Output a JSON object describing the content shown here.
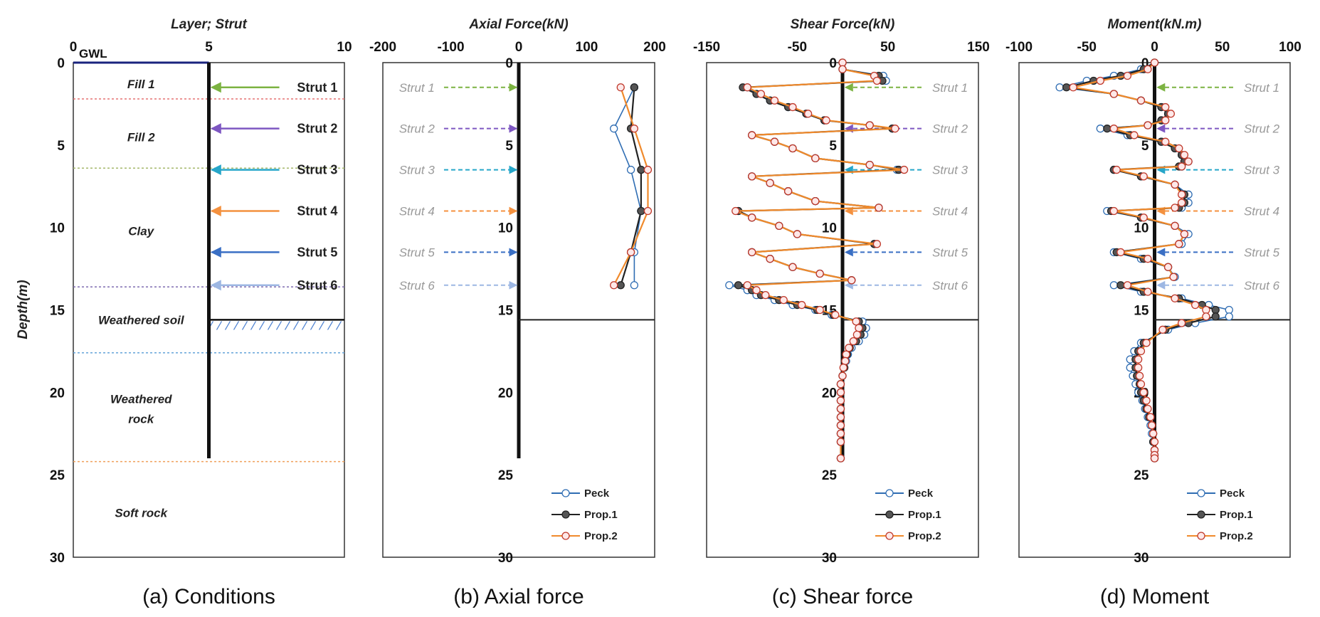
{
  "colors": {
    "peck": "#2f6db3",
    "prop1": "#222222",
    "prop2": "#f08a2c",
    "prop2_marker_edge": "#c0392b",
    "strut1": "#7cb342",
    "strut2": "#7e57c2",
    "strut3": "#26a6c9",
    "strut4": "#f4913f",
    "strut5": "#3a6fc4",
    "strut6": "#9db7e3",
    "gwl": "#1a237e"
  },
  "shared": {
    "ylabel": "Depth(m)",
    "y_ticks": [
      "0",
      "5",
      "10",
      "15",
      "20",
      "25",
      "30"
    ],
    "ylim": [
      0,
      30
    ],
    "excavation_depth": 15.6,
    "wall_bottom": 24,
    "strut_depths": [
      1.5,
      4.0,
      6.5,
      9.0,
      11.5,
      13.5
    ],
    "legend": [
      "Peck",
      "Prop.1",
      "Prop.2"
    ]
  },
  "chart_data": [
    {
      "type": "diagram",
      "title": "Layer; Strut",
      "caption": "(a) Conditions",
      "xlim": [
        0,
        10
      ],
      "x_ticks": [
        "0",
        "5",
        "10"
      ],
      "gwl_label": "GWL",
      "layers": [
        {
          "name": "Fill 1",
          "top": 0,
          "bottom": 2.2,
          "label_depth": 1.3
        },
        {
          "name": "Fill 2",
          "top": 2.2,
          "bottom": 6.4,
          "label_depth": 4.5
        },
        {
          "name": "Clay",
          "top": 6.4,
          "bottom": 13.6,
          "label_depth": 10.2
        },
        {
          "name": "Weathered soil",
          "top": 13.6,
          "bottom": 17.6,
          "label_depth": 15.6
        },
        {
          "name": "Weathered",
          "top": 17.6,
          "bottom": 24.2,
          "label_depth": 20.4
        },
        {
          "name": "rock",
          "top": 17.6,
          "bottom": 24.2,
          "label_depth": 21.6
        },
        {
          "name": "Soft rock",
          "top": 24.2,
          "bottom": 30,
          "label_depth": 27.3
        }
      ],
      "boundary_colors": [
        "#e57373",
        "#a5b86b",
        "#7e6bb0",
        "#64a3d9",
        "#f0a05a"
      ],
      "struts": [
        "Strut 1",
        "Strut 2",
        "Strut 3",
        "Strut 4",
        "Strut 5",
        "Strut 6"
      ]
    },
    {
      "type": "line",
      "title": "Axial Force(kN)",
      "caption": "(b) Axial force",
      "xlim": [
        -200,
        200
      ],
      "x_ticks": [
        "-200",
        "-100",
        "0",
        "100",
        "200"
      ],
      "struts": [
        "Strut 1",
        "Strut 2",
        "Strut 3",
        "Strut 4",
        "Strut 5",
        "Strut 6"
      ],
      "series": [
        {
          "name": "Peck",
          "x": [
            170,
            140,
            165,
            180,
            170,
            170
          ],
          "y": [
            1.5,
            4.0,
            6.5,
            9.0,
            11.5,
            13.5
          ]
        },
        {
          "name": "Prop.1",
          "x": [
            170,
            165,
            180,
            180,
            165,
            150
          ],
          "y": [
            1.5,
            4.0,
            6.5,
            9.0,
            11.5,
            13.5
          ]
        },
        {
          "name": "Prop.2",
          "x": [
            150,
            170,
            190,
            190,
            165,
            140
          ],
          "y": [
            1.5,
            4.0,
            6.5,
            9.0,
            11.5,
            13.5
          ]
        }
      ]
    },
    {
      "type": "line",
      "title": "Shear Force(kN)",
      "caption": "(c) Shear force",
      "xlim": [
        -150,
        150
      ],
      "x_ticks": [
        "-150",
        "-50",
        "50",
        "150"
      ],
      "struts": [
        "Strut 1",
        "Strut 2",
        "Strut 3",
        "Strut 4",
        "Strut 5",
        "Strut 6"
      ],
      "series": [
        {
          "name": "Peck",
          "x": [
            0,
            0,
            45,
            48,
            -105,
            -95,
            -80,
            -60,
            -40,
            -20,
            30,
            55,
            -100,
            -75,
            -55,
            -30,
            30,
            60,
            -100,
            -80,
            -60,
            -30,
            40,
            -115,
            -100,
            -70,
            -50,
            35,
            -100,
            -80,
            -55,
            -25,
            10,
            -125,
            -105,
            -95,
            -75,
            -55,
            -30,
            -12,
            22,
            26,
            24,
            18,
            10,
            6,
            4,
            2,
            0,
            -2,
            -2,
            -2,
            -2,
            -2,
            -2,
            -2,
            -2,
            -2
          ],
          "y": [
            0,
            0.4,
            0.8,
            1.1,
            1.5,
            1.9,
            2.3,
            2.7,
            3.1,
            3.5,
            3.8,
            4.0,
            4.4,
            4.8,
            5.2,
            5.8,
            6.2,
            6.5,
            6.9,
            7.3,
            7.8,
            8.4,
            8.8,
            9.0,
            9.4,
            9.9,
            10.4,
            11.0,
            11.5,
            11.9,
            12.4,
            12.8,
            13.2,
            13.5,
            13.8,
            14.1,
            14.4,
            14.7,
            15.0,
            15.3,
            15.7,
            16.1,
            16.5,
            16.9,
            17.3,
            17.7,
            18.1,
            18.5,
            19.0,
            19.5,
            20.0,
            20.5,
            21.0,
            21.5,
            22.0,
            22.5,
            23.0,
            24.0
          ]
        },
        {
          "name": "Prop.1",
          "x": [
            0,
            0,
            40,
            44,
            -110,
            -95,
            -80,
            -60,
            -40,
            -20,
            30,
            55,
            -100,
            -75,
            -55,
            -30,
            30,
            62,
            -100,
            -80,
            -60,
            -30,
            40,
            -115,
            -100,
            -70,
            -50,
            35,
            -100,
            -80,
            -55,
            -25,
            10,
            -115,
            -100,
            -90,
            -70,
            -50,
            -28,
            -10,
            18,
            22,
            20,
            15,
            8,
            5,
            3,
            2,
            0,
            -2,
            -2,
            -2,
            -2,
            -2,
            -2,
            -2,
            -2,
            -2
          ],
          "y": [
            0,
            0.4,
            0.8,
            1.1,
            1.5,
            1.9,
            2.3,
            2.7,
            3.1,
            3.5,
            3.8,
            4.0,
            4.4,
            4.8,
            5.2,
            5.8,
            6.2,
            6.5,
            6.9,
            7.3,
            7.8,
            8.4,
            8.8,
            9.0,
            9.4,
            9.9,
            10.4,
            11.0,
            11.5,
            11.9,
            12.4,
            12.8,
            13.2,
            13.5,
            13.8,
            14.1,
            14.4,
            14.7,
            15.0,
            15.3,
            15.7,
            16.1,
            16.5,
            16.9,
            17.3,
            17.7,
            18.1,
            18.5,
            19.0,
            19.5,
            20.0,
            20.5,
            21.0,
            21.5,
            22.0,
            22.5,
            23.0,
            24.0
          ]
        },
        {
          "name": "Prop.2",
          "x": [
            0,
            0,
            35,
            38,
            -105,
            -90,
            -75,
            -55,
            -38,
            -18,
            30,
            58,
            -100,
            -75,
            -55,
            -30,
            30,
            68,
            -100,
            -80,
            -60,
            -30,
            40,
            -118,
            -100,
            -70,
            -50,
            38,
            -100,
            -80,
            -55,
            -25,
            10,
            -105,
            -95,
            -85,
            -65,
            -45,
            -25,
            -8,
            15,
            18,
            16,
            12,
            7,
            4,
            3,
            1,
            0,
            -2,
            -2,
            -2,
            -2,
            -2,
            -2,
            -2,
            -2,
            -2
          ],
          "y": [
            0,
            0.4,
            0.8,
            1.1,
            1.5,
            1.9,
            2.3,
            2.7,
            3.1,
            3.5,
            3.8,
            4.0,
            4.4,
            4.8,
            5.2,
            5.8,
            6.2,
            6.5,
            6.9,
            7.3,
            7.8,
            8.4,
            8.8,
            9.0,
            9.4,
            9.9,
            10.4,
            11.0,
            11.5,
            11.9,
            12.4,
            12.8,
            13.2,
            13.5,
            13.8,
            14.1,
            14.4,
            14.7,
            15.0,
            15.3,
            15.7,
            16.1,
            16.5,
            16.9,
            17.3,
            17.7,
            18.1,
            18.5,
            19.0,
            19.5,
            20.0,
            20.5,
            21.0,
            21.5,
            22.0,
            22.5,
            23.0,
            24.0
          ]
        }
      ]
    },
    {
      "type": "line",
      "title": "Moment(kN.m)",
      "caption": "(d) Moment",
      "xlim": [
        -100,
        100
      ],
      "x_ticks": [
        "-100",
        "-50",
        "0",
        "50",
        "100"
      ],
      "struts": [
        "Strut 1",
        "Strut 2",
        "Strut 3",
        "Strut 4",
        "Strut 5",
        "Strut 6"
      ],
      "series": [
        {
          "name": "Peck",
          "x": [
            0,
            -10,
            -30,
            -50,
            -70,
            -30,
            -10,
            5,
            10,
            5,
            -5,
            -40,
            -20,
            5,
            15,
            20,
            25,
            20,
            -30,
            -10,
            15,
            25,
            25,
            20,
            -35,
            -10,
            15,
            25,
            20,
            -30,
            -10,
            10,
            15,
            -30,
            -10,
            20,
            40,
            55,
            55,
            30,
            10,
            -10,
            -15,
            -18,
            -18,
            -16,
            -14,
            -12,
            -9,
            -7,
            -5,
            -3,
            -2,
            -1,
            0,
            0,
            0
          ],
          "y": [
            0,
            0.4,
            0.8,
            1.1,
            1.5,
            1.9,
            2.3,
            2.7,
            3.1,
            3.5,
            3.8,
            4.0,
            4.4,
            4.8,
            5.2,
            5.6,
            6.0,
            6.3,
            6.5,
            6.9,
            7.4,
            8.0,
            8.5,
            8.8,
            9.0,
            9.4,
            9.9,
            10.4,
            11.0,
            11.5,
            11.9,
            12.4,
            13.0,
            13.5,
            13.9,
            14.3,
            14.7,
            15.0,
            15.4,
            15.8,
            16.2,
            17.0,
            17.5,
            18.0,
            18.5,
            19.0,
            19.5,
            20.0,
            20.5,
            21.0,
            21.5,
            22.0,
            22.5,
            23.0,
            23.5,
            23.8,
            24.0
          ]
        },
        {
          "name": "Prop.1",
          "x": [
            0,
            -8,
            -25,
            -45,
            -65,
            -30,
            -10,
            5,
            10,
            5,
            -5,
            -35,
            -18,
            5,
            15,
            20,
            22,
            18,
            -30,
            -10,
            15,
            22,
            22,
            18,
            -32,
            -10,
            15,
            22,
            18,
            -28,
            -8,
            10,
            14,
            -25,
            -8,
            18,
            35,
            45,
            45,
            25,
            8,
            -8,
            -12,
            -14,
            -14,
            -13,
            -11,
            -10,
            -8,
            -6,
            -4,
            -2,
            -1,
            -1,
            0,
            0,
            0
          ],
          "y": [
            0,
            0.4,
            0.8,
            1.1,
            1.5,
            1.9,
            2.3,
            2.7,
            3.1,
            3.5,
            3.8,
            4.0,
            4.4,
            4.8,
            5.2,
            5.6,
            6.0,
            6.3,
            6.5,
            6.9,
            7.4,
            8.0,
            8.5,
            8.8,
            9.0,
            9.4,
            9.9,
            10.4,
            11.0,
            11.5,
            11.9,
            12.4,
            13.0,
            13.5,
            13.9,
            14.3,
            14.7,
            15.0,
            15.4,
            15.8,
            16.2,
            17.0,
            17.5,
            18.0,
            18.5,
            19.0,
            19.5,
            20.0,
            20.5,
            21.0,
            21.5,
            22.0,
            22.5,
            23.0,
            23.5,
            23.8,
            24.0
          ]
        },
        {
          "name": "Prop.2",
          "x": [
            0,
            -5,
            -20,
            -40,
            -60,
            -30,
            -10,
            8,
            12,
            8,
            -5,
            -30,
            -15,
            8,
            18,
            22,
            25,
            20,
            -28,
            -8,
            15,
            20,
            20,
            15,
            -30,
            -8,
            15,
            22,
            18,
            -25,
            -5,
            10,
            14,
            -20,
            -5,
            15,
            30,
            38,
            38,
            20,
            6,
            -6,
            -10,
            -12,
            -12,
            -11,
            -10,
            -8,
            -6,
            -5,
            -3,
            -2,
            -1,
            0,
            0,
            0,
            0
          ],
          "y": [
            0,
            0.4,
            0.8,
            1.1,
            1.5,
            1.9,
            2.3,
            2.7,
            3.1,
            3.5,
            3.8,
            4.0,
            4.4,
            4.8,
            5.2,
            5.6,
            6.0,
            6.3,
            6.5,
            6.9,
            7.4,
            8.0,
            8.5,
            8.8,
            9.0,
            9.4,
            9.9,
            10.4,
            11.0,
            11.5,
            11.9,
            12.4,
            13.0,
            13.5,
            13.9,
            14.3,
            14.7,
            15.0,
            15.4,
            15.8,
            16.2,
            17.0,
            17.5,
            18.0,
            18.5,
            19.0,
            19.5,
            20.0,
            20.5,
            21.0,
            21.5,
            22.0,
            22.5,
            23.0,
            23.5,
            23.8,
            24.0
          ]
        }
      ]
    }
  ]
}
